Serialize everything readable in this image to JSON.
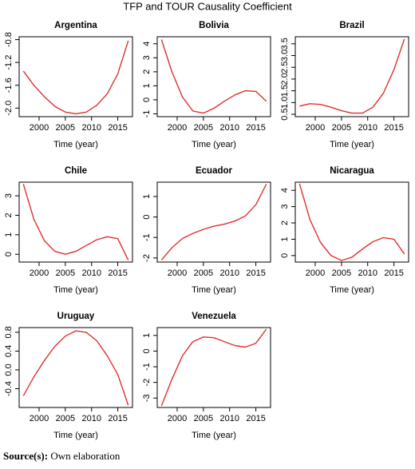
{
  "title": "TFP and TOUR Causality Coefficient",
  "source_label": "Source(s):",
  "source_text": "Own elaboration",
  "chart_data": [
    {
      "type": "line",
      "title": "Argentina",
      "xlabel": "Time (year)",
      "color": "#e0302f",
      "x": [
        1997,
        1999,
        2001,
        2003,
        2005,
        2007,
        2009,
        2011,
        2013,
        2015,
        2017
      ],
      "values": [
        -1.35,
        -1.6,
        -1.8,
        -1.97,
        -2.07,
        -2.1,
        -2.07,
        -1.95,
        -1.75,
        -1.4,
        -0.82
      ],
      "xlim": [
        1996.2,
        2017.8
      ],
      "ylim": [
        -2.15,
        -0.75
      ],
      "xticks": [
        2000,
        2005,
        2010,
        2015
      ],
      "yticks": [
        {
          "value": -2,
          "label": "-2.0"
        },
        -1.6,
        -1.2,
        -0.8
      ]
    },
    {
      "type": "line",
      "title": "Bolivia",
      "xlabel": "Time (year)",
      "color": "#e0302f",
      "x": [
        1997,
        1999,
        2001,
        2003,
        2005,
        2007,
        2009,
        2011,
        2013,
        2015,
        2017
      ],
      "values": [
        4.3,
        2.0,
        0.2,
        -0.8,
        -0.95,
        -0.6,
        -0.1,
        0.35,
        0.65,
        0.6,
        -0.1
      ],
      "xlim": [
        1996.2,
        2017.8
      ],
      "ylim": [
        -1.2,
        4.5
      ],
      "xticks": [
        2000,
        2005,
        2010,
        2015
      ],
      "yticks": [
        -1,
        0,
        1,
        2,
        3,
        4
      ]
    },
    {
      "type": "line",
      "title": "Brazil",
      "xlabel": "Time (year)",
      "color": "#e0302f",
      "x": [
        1997,
        1999,
        2001,
        2003,
        2005,
        2007,
        2009,
        2011,
        2013,
        2015,
        2017
      ],
      "values": [
        0.85,
        0.95,
        0.92,
        0.8,
        0.65,
        0.55,
        0.55,
        0.8,
        1.4,
        2.4,
        3.7
      ],
      "xlim": [
        1996.2,
        2017.8
      ],
      "ylim": [
        0.4,
        3.8
      ],
      "xticks": [
        2000,
        2005,
        2010,
        2015
      ],
      "yticks": [
        0.5,
        {
          "value": 1,
          "label": "1.0"
        },
        1.5,
        {
          "value": 2,
          "label": "2.0"
        },
        2.5,
        {
          "value": 3,
          "label": "3.0"
        },
        3.5
      ]
    },
    {
      "type": "line",
      "title": "Chile",
      "xlabel": "Time (year)",
      "color": "#e0302f",
      "x": [
        1997,
        1999,
        2001,
        2003,
        2005,
        2007,
        2009,
        2011,
        2013,
        2015,
        2017
      ],
      "values": [
        3.6,
        1.8,
        0.7,
        0.15,
        0.0,
        0.15,
        0.45,
        0.75,
        0.9,
        0.8,
        -0.3
      ],
      "xlim": [
        1996.2,
        2017.8
      ],
      "ylim": [
        -0.4,
        3.7
      ],
      "xticks": [
        2000,
        2005,
        2010,
        2015
      ],
      "yticks": [
        0,
        1,
        2,
        3
      ]
    },
    {
      "type": "line",
      "title": "Ecuador",
      "xlabel": "Time (year)",
      "color": "#e0302f",
      "x": [
        1997,
        1999,
        2001,
        2003,
        2005,
        2007,
        2009,
        2011,
        2013,
        2015,
        2017
      ],
      "values": [
        -2.1,
        -1.5,
        -1.05,
        -0.8,
        -0.6,
        -0.45,
        -0.35,
        -0.2,
        0.05,
        0.6,
        1.6
      ],
      "xlim": [
        1996.2,
        2017.8
      ],
      "ylim": [
        -2.2,
        1.7
      ],
      "xticks": [
        2000,
        2005,
        2010,
        2015
      ],
      "yticks": [
        -2,
        -1,
        0,
        1
      ]
    },
    {
      "type": "line",
      "title": "Nicaragua",
      "xlabel": "Time (year)",
      "color": "#e0302f",
      "x": [
        1997,
        1999,
        2001,
        2003,
        2005,
        2007,
        2009,
        2011,
        2013,
        2015,
        2017
      ],
      "values": [
        4.4,
        2.2,
        0.8,
        0.0,
        -0.3,
        -0.1,
        0.4,
        0.85,
        1.1,
        1.0,
        0.1
      ],
      "xlim": [
        1996.2,
        2017.8
      ],
      "ylim": [
        -0.4,
        4.5
      ],
      "xticks": [
        2000,
        2005,
        2010,
        2015
      ],
      "yticks": [
        0,
        1,
        2,
        3,
        4
      ]
    },
    {
      "type": "line",
      "title": "Uruguay",
      "xlabel": "Time (year)",
      "color": "#e0302f",
      "x": [
        1997,
        1999,
        2001,
        2003,
        2005,
        2007,
        2009,
        2011,
        2013,
        2015,
        2017
      ],
      "values": [
        -0.55,
        -0.15,
        0.2,
        0.5,
        0.72,
        0.83,
        0.8,
        0.62,
        0.3,
        -0.1,
        -0.75
      ],
      "xlim": [
        1996.2,
        2017.8
      ],
      "ylim": [
        -0.8,
        0.9
      ],
      "xticks": [
        2000,
        2005,
        2010,
        2015
      ],
      "yticks": [
        -0.4,
        {
          "value": 0,
          "label": "0.0"
        },
        0.4,
        0.8
      ]
    },
    {
      "type": "line",
      "title": "Venezuela",
      "xlabel": "Time (year)",
      "color": "#e0302f",
      "x": [
        1997,
        1999,
        2001,
        2003,
        2005,
        2007,
        2009,
        2011,
        2013,
        2015,
        2017
      ],
      "values": [
        -3.5,
        -1.8,
        -0.3,
        0.6,
        0.9,
        0.85,
        0.6,
        0.35,
        0.25,
        0.5,
        1.4
      ],
      "xlim": [
        1996.2,
        2017.8
      ],
      "ylim": [
        -3.6,
        1.5
      ],
      "xticks": [
        2000,
        2005,
        2010,
        2015
      ],
      "yticks": [
        -3,
        -2,
        -1,
        0,
        1
      ]
    }
  ]
}
